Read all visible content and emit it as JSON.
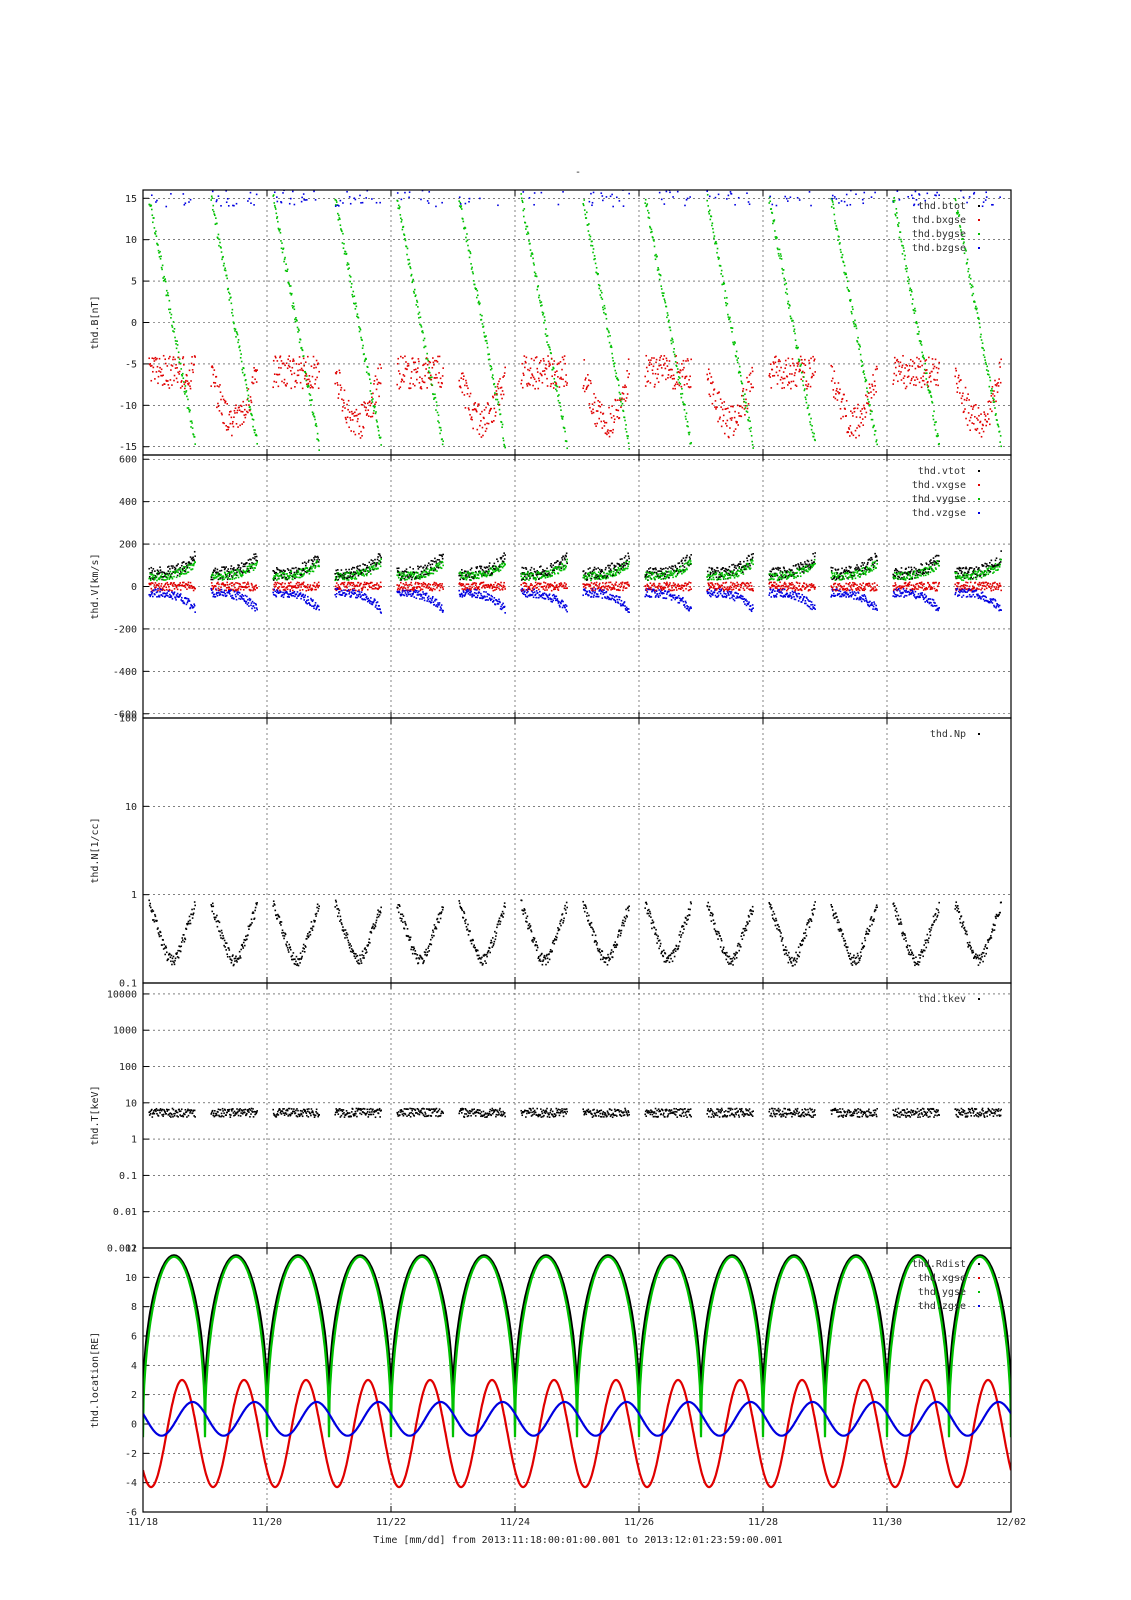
{
  "figure": {
    "title": "-",
    "caption": "Time [mm/dd]  from 2013:11:18:00:01:00.001  to  2013:12:01:23:59:00.001"
  },
  "chart_data": [
    {
      "type": "scatter",
      "id": "B",
      "ylabel": "thd.B[nT]",
      "ylim": [
        -16,
        16
      ],
      "yticks": [
        -15,
        -10,
        -5,
        0,
        5,
        10,
        15
      ],
      "xlim": [
        0,
        14
      ],
      "grid": true,
      "legend_position": "top-right",
      "series": [
        {
          "name": "thd.btot",
          "color": "#000000"
        },
        {
          "name": "thd.bxgse",
          "color": "#e00000"
        },
        {
          "name": "thd.bygse",
          "color": "#00c000"
        },
        {
          "name": "thd.bzgse",
          "color": "#0000e0"
        }
      ]
    },
    {
      "type": "scatter",
      "id": "V",
      "ylabel": "thd.V[km/s]",
      "ylim": [
        -620,
        620
      ],
      "yticks": [
        -600,
        -400,
        -200,
        0,
        200,
        400,
        600
      ],
      "xlim": [
        0,
        14
      ],
      "grid": true,
      "legend_position": "top-right",
      "series": [
        {
          "name": "thd.vtot",
          "color": "#000000"
        },
        {
          "name": "thd.vxgse",
          "color": "#e00000"
        },
        {
          "name": "thd.vygse",
          "color": "#00c000"
        },
        {
          "name": "thd.vzgse",
          "color": "#0000e0"
        }
      ]
    },
    {
      "type": "scatter",
      "id": "N",
      "ylabel": "thd.N[1/cc]",
      "yscale": "log",
      "ylim": [
        0.1,
        100
      ],
      "yticks": [
        0.1,
        1,
        10,
        100
      ],
      "ytick_labels": [
        "0.1",
        "1",
        "10",
        "100"
      ],
      "xlim": [
        0,
        14
      ],
      "grid": true,
      "legend_position": "top-right",
      "series": [
        {
          "name": "thd.Np",
          "color": "#000000"
        }
      ]
    },
    {
      "type": "scatter",
      "id": "T",
      "ylabel": "thd.T[keV]",
      "yscale": "log",
      "ylim": [
        0.001,
        20000
      ],
      "yticks": [
        0.001,
        0.01,
        0.1,
        1,
        10,
        100,
        1000,
        10000
      ],
      "ytick_labels": [
        "0.001",
        "0.01",
        "0.1",
        "1",
        "10",
        "100",
        "1000",
        "10000"
      ],
      "xlim": [
        0,
        14
      ],
      "grid": true,
      "legend_position": "top-right",
      "series": [
        {
          "name": "thd.tkev",
          "color": "#000000"
        }
      ]
    },
    {
      "type": "line",
      "id": "location",
      "ylabel": "thd.location[RE]",
      "ylim": [
        -6,
        12
      ],
      "yticks": [
        -6,
        -4,
        -2,
        0,
        2,
        4,
        6,
        8,
        10,
        12
      ],
      "xlim": [
        0,
        14
      ],
      "grid": true,
      "legend_position": "top-right",
      "xlabel": "Time [mm/dd]",
      "xtick_values": [
        0,
        2,
        4,
        6,
        8,
        10,
        12,
        14
      ],
      "xtick_labels": [
        "11/18",
        "11/20",
        "11/22",
        "11/24",
        "11/26",
        "11/28",
        "11/30",
        "12/02"
      ],
      "orbit_period_days": 1,
      "series": [
        {
          "name": "thd.Rdist",
          "color": "#000000",
          "min": 1,
          "max": 11.5
        },
        {
          "name": "thd.xgse",
          "color": "#e00000",
          "min": -4.3,
          "max": 3.0
        },
        {
          "name": "thd.ygse",
          "color": "#00c000",
          "min": -0.9,
          "max": 11.4
        },
        {
          "name": "thd.zgse",
          "color": "#0000e0",
          "min": -0.8,
          "max": 1.5
        }
      ]
    }
  ]
}
